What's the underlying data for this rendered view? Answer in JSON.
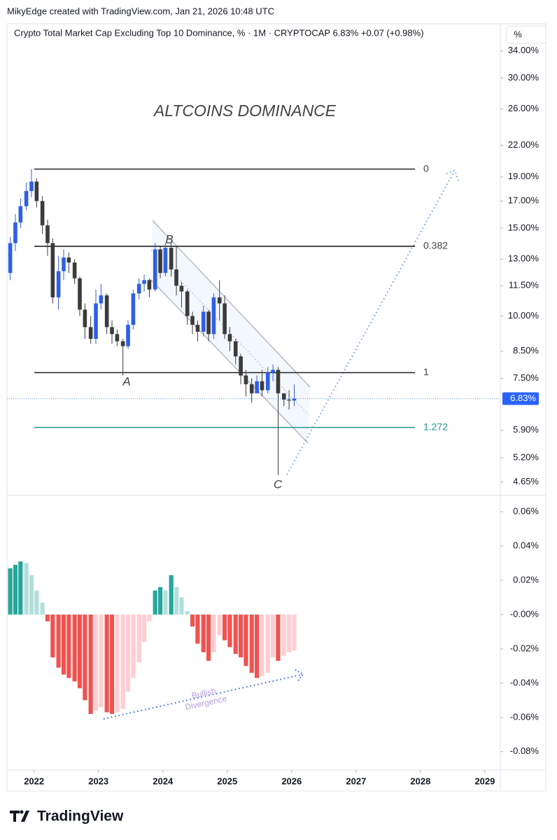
{
  "header": "MikyEdge created with TradingView.com, Jan 21, 2026 10:48 UTC",
  "scale_button": "%",
  "footer_logo": "TradingView",
  "chart_data": [
    {
      "type": "candlestick",
      "title": "Crypto Total Market Cap Excluding Top 10 Dominance, % · 1M · CRYPTOCAP  6.83%  +0.07 (+0.98%)",
      "annotations": [
        "ALTCOINS DOMINANCE",
        "A",
        "B",
        "C"
      ],
      "log": true,
      "up_color": "#2f5fe6",
      "down_color": "#3b3b3b",
      "x": [
        2021.63,
        2021.71,
        2021.79,
        2021.88,
        2021.96,
        2022.04,
        2022.13,
        2022.21,
        2022.29,
        2022.38,
        2022.46,
        2022.54,
        2022.63,
        2022.71,
        2022.79,
        2022.88,
        2022.96,
        2023.04,
        2023.13,
        2023.21,
        2023.29,
        2023.38,
        2023.46,
        2023.54,
        2023.63,
        2023.71,
        2023.79,
        2023.88,
        2023.96,
        2024.04,
        2024.13,
        2024.21,
        2024.29,
        2024.38,
        2024.46,
        2024.54,
        2024.63,
        2024.71,
        2024.79,
        2024.88,
        2024.96,
        2025.04,
        2025.13,
        2025.21,
        2025.29,
        2025.38,
        2025.46,
        2025.54,
        2025.63,
        2025.71,
        2025.79,
        2025.88,
        2025.96,
        2026.04
      ],
      "open": [
        12.2,
        14.0,
        15.4,
        16.6,
        17.8,
        18.6,
        17.0,
        15.2,
        14.0,
        10.9,
        12.3,
        13.1,
        12.8,
        11.9,
        10.3,
        9.5,
        9.0,
        10.6,
        11.0,
        9.5,
        9.2,
        8.9,
        8.7,
        9.6,
        11.1,
        11.6,
        11.8,
        11.3,
        13.6,
        12.2,
        13.7,
        12.4,
        11.5,
        11.2,
        10.0,
        9.6,
        9.3,
        10.2,
        9.2,
        10.9,
        10.6,
        9.2,
        8.9,
        8.3,
        7.6,
        7.3,
        7.0,
        7.4,
        7.1,
        7.7,
        7.8,
        7.0,
        6.8,
        6.77
      ],
      "high": [
        14.4,
        16.0,
        17.2,
        18.5,
        19.7,
        18.9,
        17.4,
        15.6,
        14.3,
        13.2,
        13.6,
        13.4,
        13.0,
        12.0,
        10.6,
        10.0,
        11.3,
        11.6,
        11.1,
        9.8,
        9.4,
        9.0,
        9.8,
        11.3,
        11.9,
        12.1,
        11.9,
        14.0,
        13.8,
        14.0,
        14.1,
        13.8,
        11.7,
        11.3,
        10.2,
        9.8,
        10.5,
        10.3,
        11.1,
        11.8,
        11.0,
        9.5,
        9.0,
        8.4,
        7.8,
        7.5,
        7.6,
        7.8,
        7.9,
        8.0,
        7.9,
        7.0,
        7.1,
        7.3
      ],
      "low": [
        11.8,
        13.5,
        15.0,
        16.3,
        17.3,
        16.5,
        14.6,
        13.2,
        10.6,
        10.3,
        11.8,
        12.2,
        11.6,
        10.0,
        9.0,
        8.8,
        8.8,
        10.3,
        9.2,
        8.8,
        8.7,
        7.6,
        8.6,
        9.4,
        10.8,
        11.2,
        10.9,
        11.2,
        11.9,
        12.0,
        12.0,
        11.0,
        10.4,
        9.6,
        9.2,
        8.9,
        9.1,
        8.9,
        9.0,
        9.8,
        9.0,
        8.5,
        8.0,
        7.3,
        6.9,
        6.7,
        7.0,
        6.9,
        7.0,
        7.4,
        4.8,
        6.6,
        6.5,
        6.6
      ],
      "close": [
        14.0,
        15.4,
        16.6,
        17.8,
        18.6,
        17.0,
        15.2,
        14.0,
        10.9,
        12.3,
        13.1,
        12.8,
        11.9,
        10.3,
        9.5,
        9.0,
        10.6,
        11.0,
        9.5,
        9.2,
        8.9,
        8.7,
        9.6,
        11.1,
        11.6,
        11.8,
        11.3,
        13.6,
        12.2,
        13.7,
        12.4,
        11.5,
        11.2,
        10.0,
        9.6,
        9.3,
        10.2,
        9.2,
        10.9,
        10.6,
        9.2,
        8.9,
        8.3,
        7.6,
        7.3,
        7.0,
        7.4,
        7.1,
        7.7,
        7.8,
        7.0,
        6.8,
        6.77,
        6.83
      ],
      "fib_levels": [
        {
          "level": 0,
          "value": 19.7,
          "color": "#333333"
        },
        {
          "level": 0.382,
          "value": 13.8,
          "color": "#222222"
        },
        {
          "level": 1,
          "value": 7.7,
          "color": "#222222"
        },
        {
          "level": 1.272,
          "value": 5.98,
          "color": "#22998a"
        }
      ],
      "last_price": {
        "value": 6.83,
        "label": "6.83%"
      },
      "xlim": [
        2021.58,
        2029.24
      ],
      "ylim": [
        4.38,
        38.4
      ],
      "yticks": [
        {
          "value": 34,
          "label": "34.00%"
        },
        {
          "value": 30,
          "label": "30.00%"
        },
        {
          "value": 26,
          "label": "26.00%"
        },
        {
          "value": 22,
          "label": "22.00%"
        },
        {
          "value": 19,
          "label": "19.00%"
        },
        {
          "value": 17,
          "label": "17.00%"
        },
        {
          "value": 15,
          "label": "15.00%"
        },
        {
          "value": 13,
          "label": "13.00%"
        },
        {
          "value": 11.5,
          "label": "11.50%"
        },
        {
          "value": 10,
          "label": "10.00%"
        },
        {
          "value": 8.5,
          "label": "8.50%"
        },
        {
          "value": 7.5,
          "label": "7.50%"
        },
        {
          "value": 5.9,
          "label": "5.90%"
        },
        {
          "value": 5.2,
          "label": "5.20%"
        },
        {
          "value": 4.65,
          "label": "4.65%"
        }
      ]
    },
    {
      "type": "histogram",
      "annotations": [
        "Bullish",
        "Divergence"
      ],
      "colors": {
        "pos_rising": "#26a69a",
        "pos_falling": "#b2dfdb",
        "neg_falling": "#ef5350",
        "neg_rising": "#ffcdd2"
      },
      "x": [
        2021.63,
        2021.71,
        2021.79,
        2021.88,
        2021.96,
        2022.04,
        2022.13,
        2022.21,
        2022.29,
        2022.38,
        2022.46,
        2022.54,
        2022.63,
        2022.71,
        2022.79,
        2022.88,
        2022.96,
        2023.04,
        2023.13,
        2023.21,
        2023.29,
        2023.38,
        2023.46,
        2023.54,
        2023.63,
        2023.71,
        2023.79,
        2023.88,
        2023.96,
        2024.04,
        2024.13,
        2024.21,
        2024.29,
        2024.38,
        2024.46,
        2024.54,
        2024.63,
        2024.71,
        2024.79,
        2024.88,
        2024.96,
        2025.04,
        2025.13,
        2025.21,
        2025.29,
        2025.38,
        2025.46,
        2025.54,
        2025.63,
        2025.71,
        2025.79,
        2025.88,
        2025.96,
        2026.04
      ],
      "values": [
        0.027,
        0.029,
        0.031,
        0.03,
        0.023,
        0.014,
        0.007,
        -0.004,
        -0.025,
        -0.031,
        -0.035,
        -0.037,
        -0.039,
        -0.043,
        -0.05,
        -0.058,
        -0.056,
        -0.054,
        -0.057,
        -0.058,
        -0.057,
        -0.055,
        -0.045,
        -0.037,
        -0.028,
        -0.016,
        -0.004,
        0.014,
        0.016,
        0.014,
        0.023,
        0.016,
        0.01,
        0.002,
        -0.007,
        -0.017,
        -0.022,
        -0.027,
        -0.022,
        -0.012,
        -0.015,
        -0.019,
        -0.023,
        -0.025,
        -0.03,
        -0.034,
        -0.037,
        -0.036,
        -0.034,
        -0.025,
        -0.027,
        -0.024,
        -0.022,
        -0.021
      ],
      "xlim": [
        2021.58,
        2029.24
      ],
      "xticks": [
        2022,
        2023,
        2024,
        2025,
        2026,
        2027,
        2028,
        2029
      ],
      "ylim": [
        -0.0907,
        0.0694
      ],
      "yticks": [
        {
          "value": 0.06,
          "label": "0.06%"
        },
        {
          "value": 0.04,
          "label": "0.04%"
        },
        {
          "value": 0.02,
          "label": "0.02%"
        },
        {
          "value": 0,
          "label": "-0.00%"
        },
        {
          "value": -0.02,
          "label": "-0.02%"
        },
        {
          "value": -0.04,
          "label": "-0.04%"
        },
        {
          "value": -0.06,
          "label": "-0.06%"
        },
        {
          "value": -0.08,
          "label": "-0.08%"
        }
      ]
    }
  ]
}
